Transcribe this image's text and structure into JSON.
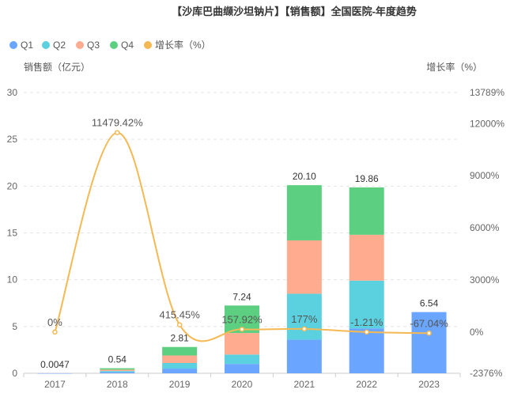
{
  "chart_data": {
    "type": "bar",
    "title": "【沙库巴曲缬沙坦钠片】【销售额】全国医院-年度趋势",
    "categories": [
      "2017",
      "2018",
      "2019",
      "2020",
      "2021",
      "2022",
      "2023"
    ],
    "legend": [
      {
        "name": "Q1",
        "color": "#6aa6ff",
        "shape": "circle"
      },
      {
        "name": "Q2",
        "color": "#5bd1e0",
        "shape": "circle"
      },
      {
        "name": "Q3",
        "color": "#ffab8f",
        "shape": "circle"
      },
      {
        "name": "Q4",
        "color": "#5ccf80",
        "shape": "circle"
      },
      {
        "name": "增长率（%）",
        "color": "#f5b953",
        "shape": "circle"
      }
    ],
    "series": [
      {
        "name": "Q1",
        "color": "#6aa6ff",
        "values": [
          0.0047,
          0.12,
          0.5,
          1.0,
          3.6,
          4.8,
          6.54
        ]
      },
      {
        "name": "Q2",
        "color": "#5bd1e0",
        "values": [
          0,
          0.12,
          0.6,
          1.0,
          4.9,
          5.1,
          0
        ]
      },
      {
        "name": "Q3",
        "color": "#ffab8f",
        "values": [
          0,
          0.15,
          0.8,
          2.3,
          5.7,
          4.9,
          0
        ]
      },
      {
        "name": "Q4",
        "color": "#5ccf80",
        "values": [
          0,
          0.15,
          0.91,
          2.94,
          5.9,
          5.06,
          0
        ]
      }
    ],
    "totals": [
      "0.0047",
      "0.54",
      "2.81",
      "7.24",
      "20.10",
      "19.86",
      "6.54"
    ],
    "growth": {
      "name": "增长率（%）",
      "color": "#f5b953",
      "values": [
        0,
        11479.42,
        415.45,
        157.92,
        177,
        -1.21,
        -67.04
      ],
      "labels": [
        "0%",
        "11479.42%",
        "415.45%",
        "157.92%",
        "177%",
        "-1.21%",
        "-67.04%"
      ]
    },
    "y_left": {
      "name": "销售额（亿元）",
      "min": 0,
      "max": 30,
      "ticks": [
        "0",
        "5",
        "10",
        "15",
        "20",
        "25",
        "30"
      ]
    },
    "y_right": {
      "name": "增长率（%）",
      "min": -2376,
      "max": 13789,
      "ticks": [
        {
          "value": -2376,
          "label": "-2376%"
        },
        {
          "value": 0,
          "label": "0%"
        },
        {
          "value": 3000,
          "label": "3000%"
        },
        {
          "value": 6000,
          "label": "6000%"
        },
        {
          "value": 9000,
          "label": "9000%"
        },
        {
          "value": 12000,
          "label": "12000%"
        },
        {
          "value": 13789,
          "label": "13789%"
        }
      ]
    },
    "grid": true,
    "legend_position": "top-left"
  }
}
